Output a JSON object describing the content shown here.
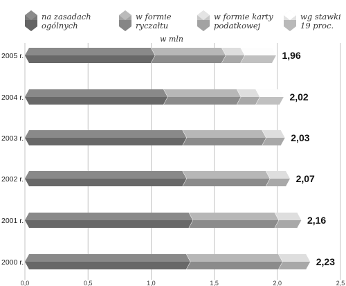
{
  "chart_data": {
    "type": "bar",
    "orientation": "horizontal",
    "stacked": true,
    "unit": "w mln",
    "categories": [
      "2005 r.",
      "2004 r.",
      "2003 r.",
      "2002 r.",
      "2001 r.",
      "2000 r."
    ],
    "series": [
      {
        "name": "na zasadach ogólnych",
        "values": [
          1.0,
          1.1,
          1.25,
          1.25,
          1.3,
          1.28
        ],
        "color": "#7a7a7a"
      },
      {
        "name": "w formie ryczałtu",
        "values": [
          0.56,
          0.58,
          0.63,
          0.66,
          0.68,
          0.73
        ],
        "color": "#a3a3a3"
      },
      {
        "name": "w formie karty podatkowej",
        "values": [
          0.15,
          0.15,
          0.15,
          0.16,
          0.18,
          0.22
        ],
        "color": "#c6c6c6"
      },
      {
        "name": "wg stawki 19 proc.",
        "values": [
          0.25,
          0.19,
          0.0,
          0.0,
          0.0,
          0.0
        ],
        "color": "#e2e2e2"
      }
    ],
    "totals": [
      "1,96",
      "2,02",
      "2,03",
      "2,07",
      "2,16",
      "2,23"
    ],
    "xlim": [
      0.0,
      2.5
    ],
    "xticks": [
      "0,0",
      "0,5",
      "1,0",
      "1,5",
      "2,0",
      "2,5"
    ],
    "grid": true,
    "legend_position": "top"
  }
}
